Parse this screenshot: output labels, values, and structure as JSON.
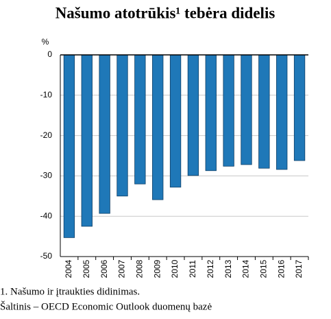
{
  "chart_data": {
    "type": "bar",
    "title": "Našumo atotrūkis¹ tebėra didelis",
    "y_unit": "%",
    "categories": [
      "2004",
      "2005",
      "2006",
      "2007",
      "2008",
      "2009",
      "2010",
      "2011",
      "2012",
      "2013",
      "2014",
      "2015",
      "2016",
      "2017"
    ],
    "values": [
      -45.3,
      -42.5,
      -39.3,
      -35.0,
      -32.0,
      -35.9,
      -32.8,
      -29.9,
      -28.7,
      -27.6,
      -27.2,
      -28.1,
      -28.4,
      -26.2
    ],
    "color": "#1f78b8",
    "ylim": [
      -50,
      0
    ],
    "yticks": [
      0,
      -10,
      -20,
      -30,
      -40,
      -50
    ],
    "grid": true,
    "footnote": "1. Našumo ir įtraukties didinimas.",
    "source": "Šaltinis – OECD Economic Outlook duomenų bazė"
  }
}
